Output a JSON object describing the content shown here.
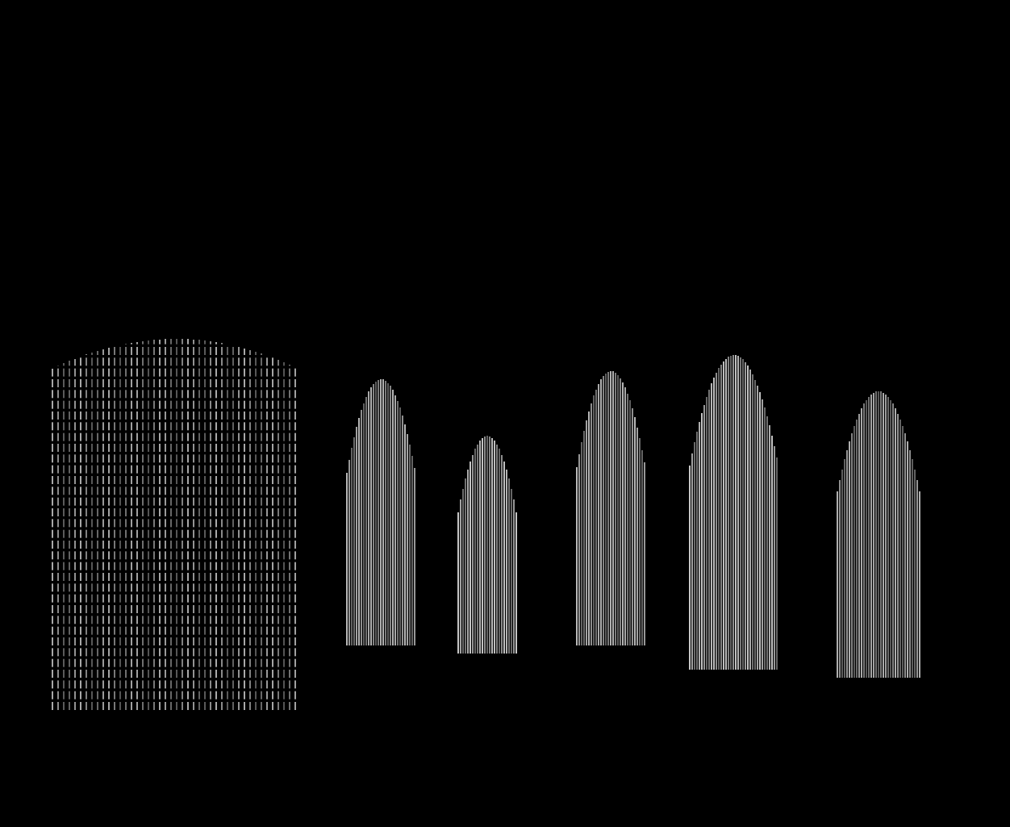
{
  "chart_data": {
    "type": "spectrogram",
    "tick_labels": false,
    "grid": false,
    "xlim": [
      0,
      1252
    ],
    "ylim": [
      0,
      1025
    ],
    "segments": [
      {
        "start": 65,
        "end": 370,
        "low": 145,
        "high": 605,
        "intensity": 0.8
      },
      {
        "start": 430,
        "end": 515,
        "low": 225,
        "high": 555,
        "intensity": 0.75
      },
      {
        "start": 568,
        "end": 640,
        "low": 215,
        "high": 485,
        "intensity": 0.8
      },
      {
        "start": 715,
        "end": 800,
        "low": 225,
        "high": 565,
        "intensity": 0.75
      },
      {
        "start": 855,
        "end": 965,
        "low": 195,
        "high": 585,
        "intensity": 0.8
      },
      {
        "start": 1038,
        "end": 1140,
        "low": 185,
        "high": 540,
        "intensity": 0.7
      }
    ]
  }
}
